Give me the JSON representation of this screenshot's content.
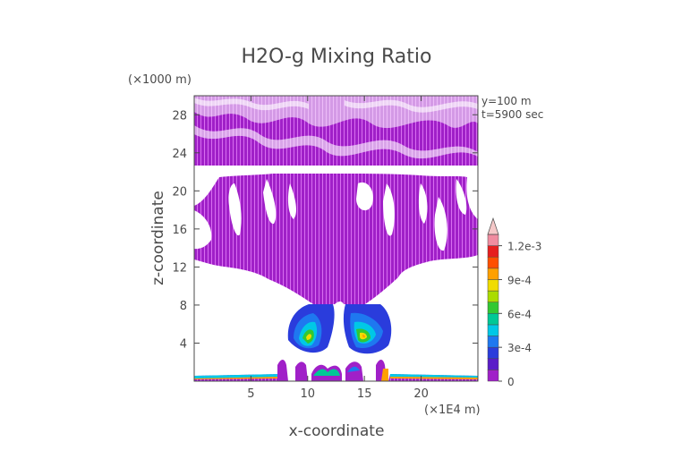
{
  "chart_data": {
    "type": "heatmap",
    "title": "H2O-g Mixing Ratio",
    "xlabel": "x-coordinate",
    "ylabel": "z-coordinate",
    "x_unit": "(×1E4 m)",
    "y_unit": "(×1000 m)",
    "annotations": [
      "y=100 m",
      "t=5900 sec"
    ],
    "xlim": [
      0,
      25
    ],
    "ylim": [
      0,
      30
    ],
    "x_ticks": [
      5,
      10,
      15,
      20
    ],
    "y_ticks": [
      4,
      8,
      12,
      16,
      20,
      24,
      28
    ],
    "x_tick_labels": [
      "5",
      "10",
      "15",
      "20"
    ],
    "y_tick_labels": [
      "4",
      "8",
      "12",
      "16",
      "20",
      "24",
      "28"
    ],
    "colorbar": {
      "ticks": [
        "0",
        "3e-4",
        "6e-4",
        "9e-4",
        "1.2e-3"
      ],
      "tick_values": [
        0,
        0.0003,
        0.0006,
        0.0009,
        0.0012
      ],
      "levels": [
        0,
        0.0001,
        0.0002,
        0.0003,
        0.0004,
        0.0005,
        0.0006,
        0.0007,
        0.0008,
        0.0009,
        0.001,
        0.0011,
        0.0012
      ],
      "colors": [
        "#a020c8",
        "#5a1cc8",
        "#2a3cdc",
        "#1e78f0",
        "#00c8e6",
        "#00c896",
        "#32c832",
        "#aadc00",
        "#f0dc00",
        "#ffa000",
        "#ff5000",
        "#e61e1e",
        "#f08ca0",
        "#f5c8c8"
      ]
    },
    "colors": {
      "background_field": "#a020c8",
      "grid_line": "#e070f0",
      "axis": "#4a4a4a"
    }
  }
}
